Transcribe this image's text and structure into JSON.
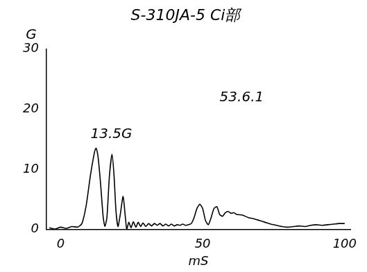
{
  "chart_data": {
    "type": "line",
    "title": "S-310JA-5 Ci部",
    "x_label": "mS",
    "y_label": "G",
    "x": [
      -4,
      -2,
      0,
      2,
      4,
      6,
      7.5,
      9,
      10.5,
      12,
      12.5,
      13.2,
      14,
      15,
      15.6,
      16.3,
      17.2,
      18.1,
      18.8,
      19.5,
      20.2,
      21,
      22,
      22.8,
      23.3,
      24,
      24.8,
      25.6,
      26.5,
      27.3,
      28.2,
      29,
      30,
      31,
      32,
      33,
      34,
      35,
      36,
      37,
      38,
      39,
      40,
      41,
      42,
      43,
      44,
      45,
      46,
      47,
      48,
      49,
      50,
      51,
      52,
      53,
      54,
      55,
      56,
      57,
      58,
      59,
      60,
      61,
      62,
      64,
      66,
      68,
      70,
      72,
      74,
      76,
      78,
      80,
      82,
      84,
      86,
      88,
      90,
      92,
      94,
      96,
      98,
      100
    ],
    "values": [
      0.3,
      0.1,
      0.4,
      0.2,
      0.5,
      0.4,
      1,
      4,
      9,
      13,
      13.5,
      12,
      8,
      2,
      0.5,
      2,
      9,
      12.5,
      9,
      3,
      0.5,
      2.5,
      5.5,
      2,
      0,
      1.2,
      0.3,
      1.3,
      0.4,
      1.2,
      0.5,
      1.1,
      0.5,
      1,
      0.6,
      1,
      0.7,
      1,
      0.6,
      0.9,
      0.6,
      0.9,
      0.6,
      0.8,
      0.7,
      0.9,
      0.7,
      0.8,
      1,
      2,
      3.5,
      4.2,
      3.5,
      1.5,
      0.8,
      2,
      3.5,
      3.8,
      2.5,
      2.2,
      2.8,
      3,
      2.7,
      2.8,
      2.5,
      2.4,
      2,
      1.8,
      1.5,
      1.2,
      0.9,
      0.7,
      0.5,
      0.4,
      0.5,
      0.6,
      0.5,
      0.7,
      0.8,
      0.7,
      0.8,
      0.9,
      1.0,
      1.0
    ],
    "color": "#000000",
    "xlim": [
      -5,
      102
    ],
    "xticks": [
      0,
      50,
      100
    ],
    "ylim": [
      0,
      30
    ],
    "yticks": [
      0,
      10,
      20,
      30
    ],
    "grid": false,
    "annotations": [
      "13.5G",
      "53.6.1"
    ]
  }
}
